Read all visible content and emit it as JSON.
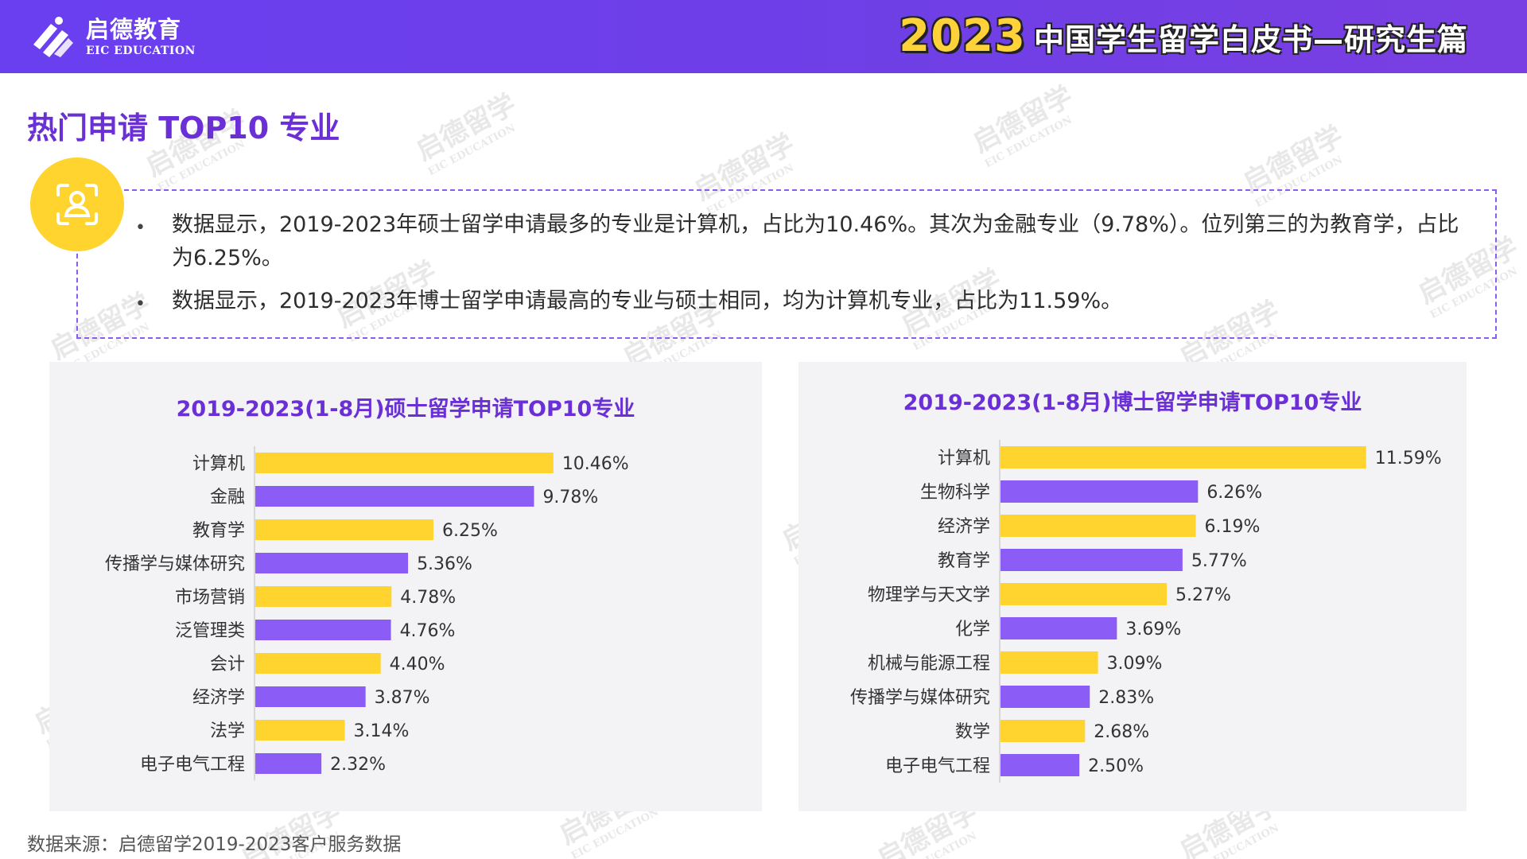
{
  "header": {
    "logo_cn": "启德教育",
    "logo_en": "EIC EDUCATION",
    "year": "2023",
    "title": "中国学生留学白皮书—研究生篇"
  },
  "section_title": "热门申请 TOP10 专业",
  "findings": [
    "数据显示，2019-2023年硕士留学申请最多的专业是计算机，占比为10.46%。其次为金融专业（9.78%）。位列第三的为教育学，占比为6.25%。",
    "数据显示，2019-2023年博士留学申请最高的专业与硕士相同，均为计算机专业，占比为11.59%。"
  ],
  "bullet_symbol": "•",
  "watermark": {
    "cn": "启德留学",
    "en": "EIC EDUCATION"
  },
  "source": "数据来源：启德留学2019-2023客户服务数据",
  "colors": {
    "header": "#6a3ff0",
    "yellow": "#ffd42e",
    "purple": "#8b5cf6",
    "title": "#6b2fd6"
  },
  "chart_data": [
    {
      "type": "bar",
      "orientation": "horizontal",
      "title": "2019-2023(1-8月)硕士留学申请TOP10专业",
      "categories": [
        "计算机",
        "金融",
        "教育学",
        "传播学与媒体研究",
        "市场营销",
        "泛管理类",
        "会计",
        "经济学",
        "法学",
        "电子电气工程"
      ],
      "values": [
        10.46,
        9.78,
        6.25,
        5.36,
        4.78,
        4.76,
        4.4,
        3.87,
        3.14,
        2.32
      ],
      "labels": [
        "10.46%",
        "9.78%",
        "6.25%",
        "5.36%",
        "4.78%",
        "4.76%",
        "4.40%",
        "3.87%",
        "3.14%",
        "2.32%"
      ],
      "bar_colors": [
        "#ffd42e",
        "#8b5cf6",
        "#ffd42e",
        "#8b5cf6",
        "#ffd42e",
        "#8b5cf6",
        "#ffd42e",
        "#8b5cf6",
        "#ffd42e",
        "#8b5cf6"
      ],
      "xlim": [
        0,
        12
      ]
    },
    {
      "type": "bar",
      "orientation": "horizontal",
      "title": "2019-2023(1-8月)博士留学申请TOP10专业",
      "categories": [
        "计算机",
        "生物科学",
        "经济学",
        "教育学",
        "物理学与天文学",
        "化学",
        "机械与能源工程",
        "传播学与媒体研究",
        "数学",
        "电子电气工程"
      ],
      "values": [
        11.59,
        6.26,
        6.19,
        5.77,
        5.27,
        3.69,
        3.09,
        2.83,
        2.68,
        2.5
      ],
      "labels": [
        "11.59%",
        "6.26%",
        "6.19%",
        "5.77%",
        "5.27%",
        "3.69%",
        "3.09%",
        "2.83%",
        "2.68%",
        "2.50%"
      ],
      "bar_colors": [
        "#ffd42e",
        "#8b5cf6",
        "#ffd42e",
        "#8b5cf6",
        "#ffd42e",
        "#8b5cf6",
        "#ffd42e",
        "#8b5cf6",
        "#ffd42e",
        "#8b5cf6"
      ],
      "xlim": [
        0,
        12
      ]
    }
  ]
}
